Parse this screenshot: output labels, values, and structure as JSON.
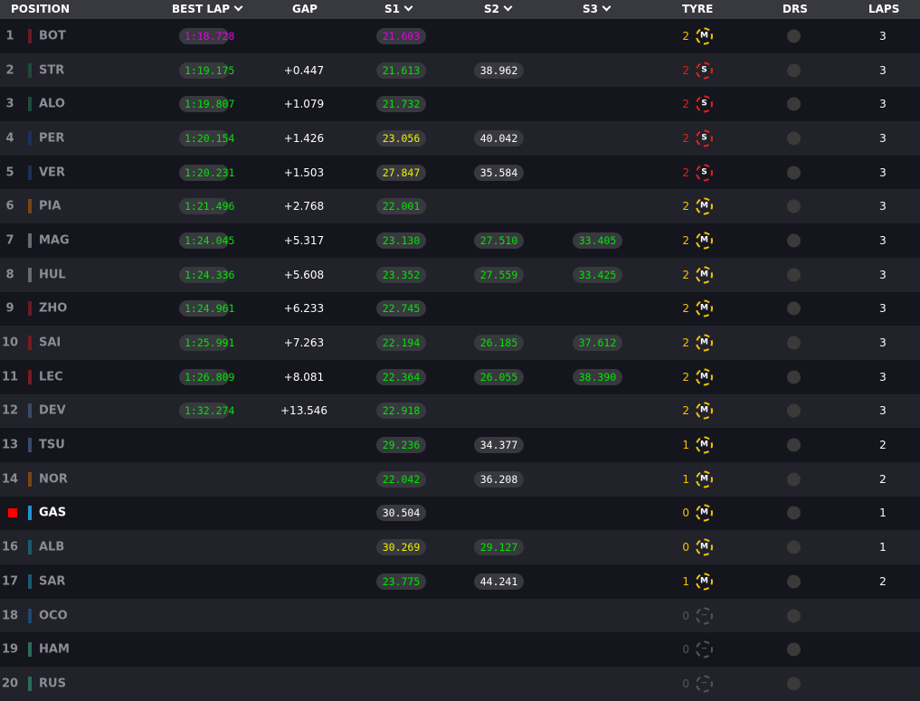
{
  "header": {
    "position": "POSITION",
    "best_lap": "BEST LAP",
    "gap": "GAP",
    "s1": "S1",
    "s2": "S2",
    "s3": "S3",
    "tyre": "TYRE",
    "drs": "DRS",
    "laps": "LAPS"
  },
  "colors": {
    "purple": "#e600e6",
    "green": "#00e600",
    "yellow": "#f0f000",
    "white": "#ffffff",
    "medium": "#f5c400",
    "soft": "#e0221a",
    "none": "#55555e"
  },
  "rows": [
    {
      "pos": "1",
      "abbr": "BOT",
      "team": "#6b1a26",
      "best": "1:18.728",
      "best_c": "purple",
      "gap": "",
      "s1": "21.603",
      "s1_c": "purple",
      "s2": "",
      "s2_c": "",
      "s3": "",
      "s3_c": "",
      "tyre_count": "2",
      "tyre": "M",
      "laps": "3"
    },
    {
      "pos": "2",
      "abbr": "STR",
      "team": "#1d4a3c",
      "best": "1:19.175",
      "best_c": "green",
      "gap": "+0.447",
      "s1": "21.613",
      "s1_c": "green",
      "s2": "38.962",
      "s2_c": "white",
      "s3": "",
      "s3_c": "",
      "tyre_count": "2",
      "tyre": "S",
      "laps": "3"
    },
    {
      "pos": "3",
      "abbr": "ALO",
      "team": "#1d4a3c",
      "best": "1:19.807",
      "best_c": "green",
      "gap": "+1.079",
      "s1": "21.732",
      "s1_c": "green",
      "s2": "",
      "s2_c": "",
      "s3": "",
      "s3_c": "",
      "tyre_count": "2",
      "tyre": "S",
      "laps": "3"
    },
    {
      "pos": "4",
      "abbr": "PER",
      "team": "#1e2f5a",
      "best": "1:20.154",
      "best_c": "green",
      "gap": "+1.426",
      "s1": "23.056",
      "s1_c": "yellow",
      "s2": "40.042",
      "s2_c": "white",
      "s3": "",
      "s3_c": "",
      "tyre_count": "2",
      "tyre": "S",
      "laps": "3"
    },
    {
      "pos": "5",
      "abbr": "VER",
      "team": "#1e2f5a",
      "best": "1:20.231",
      "best_c": "green",
      "gap": "+1.503",
      "s1": "27.847",
      "s1_c": "yellow",
      "s2": "35.584",
      "s2_c": "white",
      "s3": "",
      "s3_c": "",
      "tyre_count": "2",
      "tyre": "S",
      "laps": "3"
    },
    {
      "pos": "6",
      "abbr": "PIA",
      "team": "#7a4518",
      "best": "1:21.496",
      "best_c": "green",
      "gap": "+2.768",
      "s1": "22.001",
      "s1_c": "green",
      "s2": "",
      "s2_c": "",
      "s3": "",
      "s3_c": "",
      "tyre_count": "2",
      "tyre": "M",
      "laps": "3"
    },
    {
      "pos": "7",
      "abbr": "MAG",
      "team": "#6a6a70",
      "best": "1:24.045",
      "best_c": "green",
      "gap": "+5.317",
      "s1": "23.130",
      "s1_c": "green",
      "s2": "27.510",
      "s2_c": "green",
      "s3": "33.405",
      "s3_c": "green",
      "tyre_count": "2",
      "tyre": "M",
      "laps": "3"
    },
    {
      "pos": "8",
      "abbr": "HUL",
      "team": "#6a6a70",
      "best": "1:24.336",
      "best_c": "green",
      "gap": "+5.608",
      "s1": "23.352",
      "s1_c": "green",
      "s2": "27.559",
      "s2_c": "green",
      "s3": "33.425",
      "s3_c": "green",
      "tyre_count": "2",
      "tyre": "M",
      "laps": "3"
    },
    {
      "pos": "9",
      "abbr": "ZHO",
      "team": "#6b1a26",
      "best": "1:24.961",
      "best_c": "green",
      "gap": "+6.233",
      "s1": "22.745",
      "s1_c": "green",
      "s2": "",
      "s2_c": "",
      "s3": "",
      "s3_c": "",
      "tyre_count": "2",
      "tyre": "M",
      "laps": "3"
    },
    {
      "pos": "10",
      "abbr": "SAI",
      "team": "#7a1a22",
      "best": "1:25.991",
      "best_c": "green",
      "gap": "+7.263",
      "s1": "22.194",
      "s1_c": "green",
      "s2": "26.185",
      "s2_c": "green",
      "s3": "37.612",
      "s3_c": "green",
      "tyre_count": "2",
      "tyre": "M",
      "laps": "3"
    },
    {
      "pos": "11",
      "abbr": "LEC",
      "team": "#7a1a22",
      "best": "1:26.809",
      "best_c": "green",
      "gap": "+8.081",
      "s1": "22.364",
      "s1_c": "green",
      "s2": "26.055",
      "s2_c": "green",
      "s3": "38.390",
      "s3_c": "green",
      "tyre_count": "2",
      "tyre": "M",
      "laps": "3"
    },
    {
      "pos": "12",
      "abbr": "DEV",
      "team": "#3a4a66",
      "best": "1:32.274",
      "best_c": "green",
      "gap": "+13.546",
      "s1": "22.918",
      "s1_c": "green",
      "s2": "",
      "s2_c": "",
      "s3": "",
      "s3_c": "",
      "tyre_count": "2",
      "tyre": "M",
      "laps": "3"
    },
    {
      "pos": "13",
      "abbr": "TSU",
      "team": "#3a4a66",
      "best": "",
      "best_c": "",
      "gap": "",
      "s1": "29.236",
      "s1_c": "green",
      "s2": "34.377",
      "s2_c": "white",
      "s3": "",
      "s3_c": "",
      "tyre_count": "1",
      "tyre": "M",
      "laps": "2"
    },
    {
      "pos": "14",
      "abbr": "NOR",
      "team": "#7a4518",
      "best": "",
      "best_c": "",
      "gap": "",
      "s1": "22.042",
      "s1_c": "green",
      "s2": "36.208",
      "s2_c": "white",
      "s3": "",
      "s3_c": "",
      "tyre_count": "1",
      "tyre": "M",
      "laps": "2"
    },
    {
      "pos": "",
      "flag": true,
      "abbr": "GAS",
      "team": "#2293d1",
      "highlight": true,
      "best": "",
      "best_c": "",
      "gap": "",
      "s1": "30.504",
      "s1_c": "white",
      "s2": "",
      "s2_c": "",
      "s3": "",
      "s3_c": "",
      "tyre_count": "0",
      "tyre": "M",
      "laps": "1"
    },
    {
      "pos": "16",
      "abbr": "ALB",
      "team": "#1d5a70",
      "best": "",
      "best_c": "",
      "gap": "",
      "s1": "30.269",
      "s1_c": "yellow",
      "s2": "29.127",
      "s2_c": "green",
      "s3": "",
      "s3_c": "",
      "tyre_count": "0",
      "tyre": "M",
      "laps": "1"
    },
    {
      "pos": "17",
      "abbr": "SAR",
      "team": "#1d5a70",
      "best": "",
      "best_c": "",
      "gap": "",
      "s1": "23.775",
      "s1_c": "green",
      "s2": "44.241",
      "s2_c": "white",
      "s3": "",
      "s3_c": "",
      "tyre_count": "1",
      "tyre": "M",
      "laps": "2"
    },
    {
      "pos": "18",
      "abbr": "OCO",
      "team": "#1d4a70",
      "best": "",
      "best_c": "",
      "gap": "",
      "s1": "",
      "s1_c": "",
      "s2": "",
      "s2_c": "",
      "s3": "",
      "s3_c": "",
      "tyre_count": "0",
      "tyre": "−",
      "laps": ""
    },
    {
      "pos": "19",
      "abbr": "HAM",
      "team": "#2e6a5a",
      "best": "",
      "best_c": "",
      "gap": "",
      "s1": "",
      "s1_c": "",
      "s2": "",
      "s2_c": "",
      "s3": "",
      "s3_c": "",
      "tyre_count": "0",
      "tyre": "−",
      "laps": ""
    },
    {
      "pos": "20",
      "abbr": "RUS",
      "team": "#2e6a5a",
      "best": "",
      "best_c": "",
      "gap": "",
      "s1": "",
      "s1_c": "",
      "s2": "",
      "s2_c": "",
      "s3": "",
      "s3_c": "",
      "tyre_count": "0",
      "tyre": "−",
      "laps": ""
    }
  ]
}
